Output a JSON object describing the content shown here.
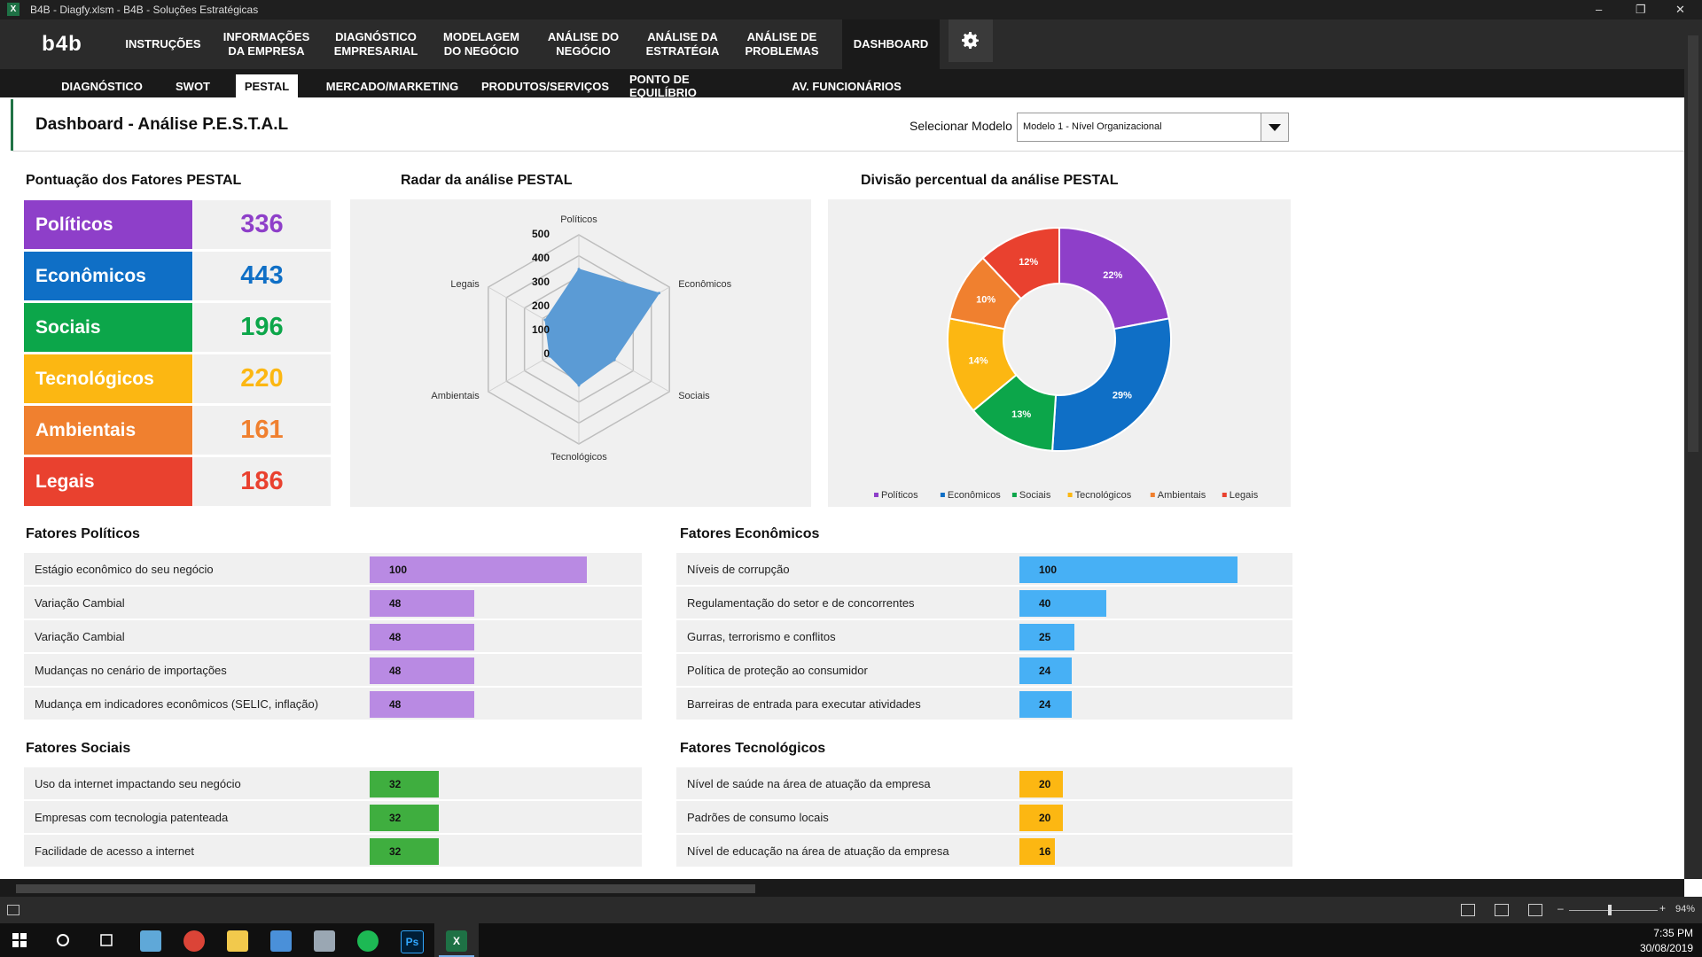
{
  "window": {
    "title": "B4B - Diagfy.xlsm - B4B - Soluções Estratégicas",
    "app_badge": "X",
    "controls": [
      "–",
      "❐",
      "✕"
    ]
  },
  "topnav": {
    "logo": "b4b",
    "items": [
      {
        "label": "INSTRUÇÕES"
      },
      {
        "label": "INFORMAÇÕES\nDA EMPRESA"
      },
      {
        "label": "DIAGNÓSTICO\nEMPRESARIAL"
      },
      {
        "label": "MODELAGEM\nDO NEGÓCIO"
      },
      {
        "label": "ANÁLISE DO\nNEGÓCIO"
      },
      {
        "label": "ANÁLISE DA\nESTRATÉGIA"
      },
      {
        "label": "ANÁLISE DE\nPROBLEMAS"
      },
      {
        "label": "DASHBOARD"
      }
    ],
    "active": "DASHBOARD",
    "settings_icon": "gear-icon"
  },
  "subnav": {
    "items": [
      "DIAGNÓSTICO",
      "SWOT",
      "PESTAL",
      "MERCADO/MARKETING",
      "PRODUTOS/SERVIÇOS",
      "PONTO DE EQUILÍBRIO",
      "AV. FUNCIONÁRIOS"
    ],
    "active": "PESTAL"
  },
  "header": {
    "title": "Dashboard - Análise P.E.S.T.A.L",
    "model_label": "Selecionar Modelo",
    "model_value": "Modelo 1 - Nível Organizacional"
  },
  "scores": {
    "title": "Pontuação dos Fatores PESTAL",
    "rows": [
      {
        "label": "Políticos",
        "value": "336",
        "color": "#8e3fc9"
      },
      {
        "label": "Econômicos",
        "value": "443",
        "color": "#0f6fc6"
      },
      {
        "label": "Sociais",
        "value": "196",
        "color": "#0ca64a"
      },
      {
        "label": "Tecnológicos",
        "value": "220",
        "color": "#fcb712"
      },
      {
        "label": "Ambientais",
        "value": "161",
        "color": "#f0802f"
      },
      {
        "label": "Legais",
        "value": "186",
        "color": "#e9412f"
      }
    ]
  },
  "radar": {
    "title": "Radar da análise PESTAL",
    "ticks": [
      "500",
      "400",
      "300",
      "200",
      "100",
      "0"
    ]
  },
  "donut": {
    "title": "Divisão percentual da análise PESTAL"
  },
  "chart_data": [
    {
      "type": "radar",
      "title": "Radar da análise PESTAL",
      "categories": [
        "Políticos",
        "Econômicos",
        "Sociais",
        "Tecnológicos",
        "Ambientais",
        "Legais"
      ],
      "values": [
        336,
        443,
        196,
        220,
        161,
        186
      ],
      "rlim": [
        0,
        500
      ],
      "ticks": [
        0,
        100,
        200,
        300,
        400,
        500
      ],
      "color": "#5b9bd5"
    },
    {
      "type": "pie",
      "title": "Divisão percentual da análise PESTAL",
      "categories": [
        "Políticos",
        "Econômicos",
        "Sociais",
        "Tecnológicos",
        "Ambientais",
        "Legais"
      ],
      "values": [
        22,
        29,
        13,
        14,
        10,
        12
      ],
      "labels": [
        "22%",
        "29%",
        "13%",
        "14%",
        "10%",
        "12%"
      ],
      "colors": [
        "#8e3fc9",
        "#0f6fc6",
        "#0ca64a",
        "#fcb712",
        "#f0802f",
        "#e9412f"
      ],
      "legend": "bottom"
    }
  ],
  "factor_groups": [
    {
      "title": "Fatores Políticos",
      "bar_color": "#b98ae3",
      "max": 100,
      "items": [
        {
          "label": "Estágio econômico do seu negócio",
          "value": 100
        },
        {
          "label": "Variação Cambial",
          "value": 48
        },
        {
          "label": "Variação Cambial",
          "value": 48
        },
        {
          "label": "Mudanças no cenário de importações",
          "value": 48
        },
        {
          "label": "Mudança em indicadores econômicos (SELIC, inflação)",
          "value": 48
        }
      ]
    },
    {
      "title": "Fatores Econômicos",
      "bar_color": "#47b0f5",
      "max": 100,
      "items": [
        {
          "label": "Níveis de corrupção",
          "value": 100
        },
        {
          "label": "Regulamentação do setor e de concorrentes",
          "value": 40
        },
        {
          "label": "Gurras, terrorismo e conflitos",
          "value": 25
        },
        {
          "label": "Política de proteção ao consumidor",
          "value": 24
        },
        {
          "label": "Barreiras de entrada para executar atividades",
          "value": 24
        }
      ]
    },
    {
      "title": "Fatores Sociais",
      "bar_color": "#3fae3f",
      "max": 100,
      "items": [
        {
          "label": "Uso da internet impactando seu negócio",
          "value": 32
        },
        {
          "label": "Empresas com tecnologia patenteada",
          "value": 32
        },
        {
          "label": "Facilidade de acesso a internet",
          "value": 32
        }
      ]
    },
    {
      "title": "Fatores Tecnológicos",
      "bar_color": "#fcb712",
      "max": 100,
      "items": [
        {
          "label": "Nível de saúde na área de atuação da empresa",
          "value": 20
        },
        {
          "label": "Padrões de consumo locais",
          "value": 20
        },
        {
          "label": "Nível de educação na área de atuação da empresa",
          "value": 16
        }
      ]
    }
  ],
  "statusbar": {
    "zoom": "94%",
    "zoom_minus": "–",
    "zoom_plus": "+"
  },
  "taskbar": {
    "time": "7:35 PM",
    "date": "30/08/2019",
    "ps_label": "Ps",
    "xl_label": "X"
  }
}
